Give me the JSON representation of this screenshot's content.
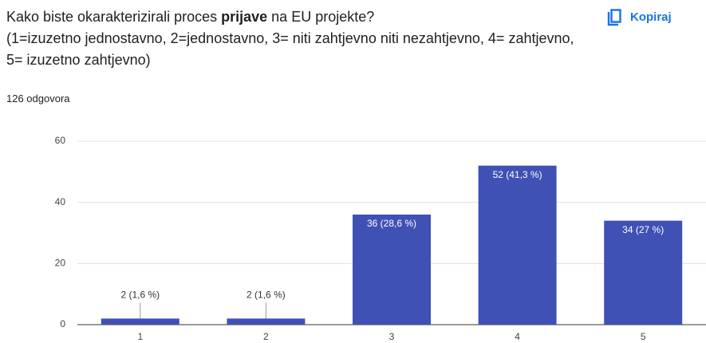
{
  "header": {
    "title_parts": [
      "Kako biste okarakterizirali proces ",
      "prijave",
      " na EU projekte?"
    ],
    "title_bold_part": 1,
    "subtitle": "(1=izuzetno jednostavno, 2=jednostavno, 3= niti zahtjevno niti nezahtjevno, 4= zahtjevno, 5= izuzetno zahtjevno)",
    "responses": "126 odgovora",
    "copy_button": "Kopiraj"
  },
  "chart_data": {
    "type": "bar",
    "categories": [
      "1",
      "2",
      "3",
      "4",
      "5"
    ],
    "values": [
      2,
      2,
      36,
      52,
      34
    ],
    "value_labels": [
      "2 (1,6 %)",
      "2 (1,6 %)",
      "36 (28,6 %)",
      "52 (41,3 %)",
      "34 (27 %)"
    ],
    "color": "#3f51b5",
    "ylim": [
      0,
      60
    ],
    "yticks": [
      0,
      20,
      40,
      60
    ],
    "grid": true
  }
}
